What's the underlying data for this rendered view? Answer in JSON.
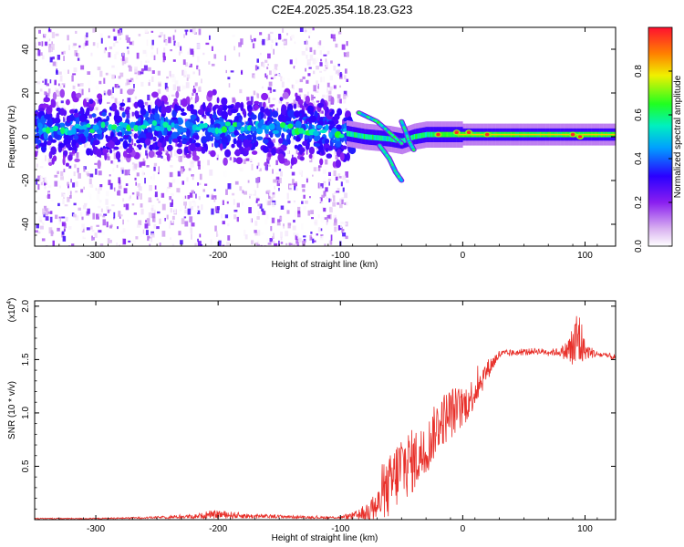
{
  "title": "C2E4.2025.354.18.23.G23",
  "chart_data": [
    {
      "type": "heatmap",
      "name": "spectrogram",
      "xlabel": "Height of straight line (km)",
      "ylabel": "Frequency (Hz)",
      "xlim": [
        -350,
        125
      ],
      "ylim": [
        -50,
        50
      ],
      "xticks": [
        -300,
        -200,
        -100,
        0,
        100
      ],
      "yticks": [
        -40,
        -20,
        0,
        20,
        40
      ],
      "noise_region_x": [
        -350,
        -95
      ],
      "main_track": {
        "x": [
          -350,
          -300,
          -250,
          -200,
          -150,
          -100,
          -80,
          -60,
          -50,
          -40,
          -30,
          -20,
          0,
          50,
          100,
          125
        ],
        "freq_hz": [
          3,
          4,
          5,
          4,
          4,
          2,
          0,
          -1,
          -2,
          0,
          1,
          1,
          1,
          1,
          1,
          1
        ]
      },
      "branches": [
        {
          "x": [
            -85,
            -70,
            -60,
            -50
          ],
          "freq_hz": [
            11,
            7,
            2,
            -3
          ]
        },
        {
          "x": [
            -68,
            -60,
            -55,
            -50
          ],
          "freq_hz": [
            -4,
            -10,
            -16,
            -20
          ]
        },
        {
          "x": [
            -50,
            -47,
            -44,
            -40
          ],
          "freq_hz": [
            7,
            3,
            -2,
            -6
          ]
        }
      ],
      "hot_spots": [
        {
          "x": -20,
          "freq_hz": 1
        },
        {
          "x": -5,
          "freq_hz": 2
        },
        {
          "x": 5,
          "freq_hz": 2
        },
        {
          "x": 20,
          "freq_hz": 1
        },
        {
          "x": 90,
          "freq_hz": 1
        },
        {
          "x": 96,
          "freq_hz": 0
        }
      ],
      "colorbar": {
        "label": "Normalized spectral amplitude",
        "range": [
          0,
          1
        ],
        "ticks": [
          "0.0",
          "0.2",
          "0.4",
          "0.6",
          "0.8"
        ],
        "tick_values": [
          0,
          0.2,
          0.4,
          0.6,
          0.8
        ]
      }
    },
    {
      "type": "line",
      "name": "snr",
      "xlabel": "Height of straight line (km)",
      "ylabel": "SNR (10 * v/v)",
      "multiplier": "(x10",
      "multiplier_exp": "4",
      "multiplier_close": ")",
      "xlim": [
        -350,
        125
      ],
      "ylim": [
        0,
        2.05
      ],
      "xticks": [
        -300,
        -200,
        -100,
        0,
        100
      ],
      "yticks": [
        "0.5",
        "1.0",
        "1.5",
        "2.0"
      ],
      "ytick_values": [
        0.5,
        1.0,
        1.5,
        2.0
      ],
      "color": "#e8302a",
      "x": [
        -350,
        -300,
        -250,
        -220,
        -200,
        -170,
        -150,
        -120,
        -100,
        -85,
        -70,
        -60,
        -50,
        -40,
        -30,
        -20,
        -10,
        0,
        10,
        20,
        30,
        40,
        50,
        60,
        70,
        80,
        85,
        90,
        95,
        100,
        110,
        125
      ],
      "y": [
        0.01,
        0.01,
        0.02,
        0.03,
        0.05,
        0.03,
        0.03,
        0.02,
        0.02,
        0.04,
        0.12,
        0.3,
        0.5,
        0.55,
        0.65,
        0.9,
        1.0,
        1.05,
        1.2,
        1.4,
        1.55,
        1.56,
        1.57,
        1.58,
        1.57,
        1.57,
        1.58,
        1.6,
        1.7,
        1.58,
        1.55,
        1.52
      ],
      "noise_amplitude": [
        0.005,
        0.005,
        0.01,
        0.02,
        0.04,
        0.02,
        0.015,
        0.01,
        0.01,
        0.05,
        0.15,
        0.3,
        0.35,
        0.3,
        0.25,
        0.25,
        0.25,
        0.2,
        0.15,
        0.1,
        0.04,
        0.03,
        0.03,
        0.03,
        0.03,
        0.04,
        0.1,
        0.25,
        0.35,
        0.08,
        0.03,
        0.03
      ]
    }
  ]
}
